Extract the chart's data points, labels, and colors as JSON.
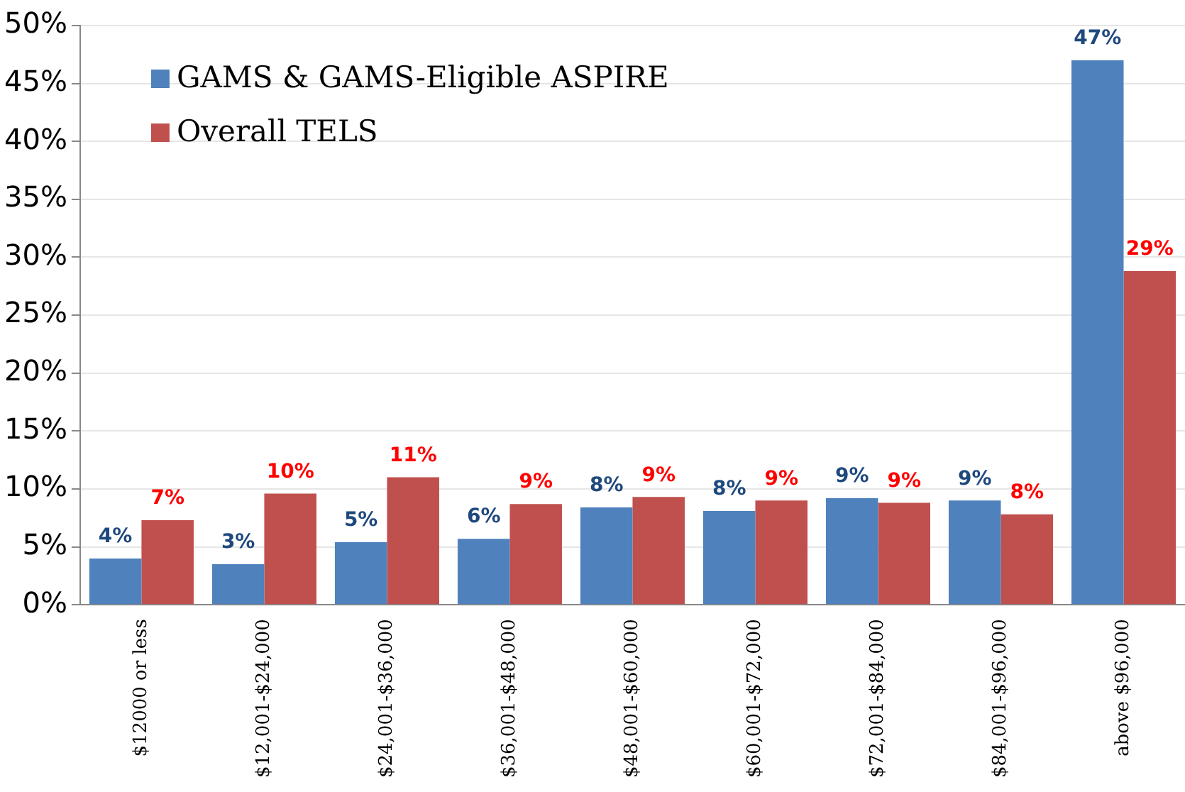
{
  "chart_data": {
    "type": "bar",
    "categories": [
      "$12000 or less",
      "$12,001-$24,000",
      "$24,001-$36,000",
      "$36,001-$48,000",
      "$48,001-$60,000",
      "$60,001-$72,000",
      "$72,001-$84,000",
      "$84,001-$96,000",
      "above $96,000"
    ],
    "series": [
      {
        "name": "GAMS & GAMS-Eligible ASPIRE",
        "color": "#4f81bd",
        "values": [
          4.0,
          3.5,
          5.4,
          5.7,
          8.4,
          8.1,
          9.2,
          9.0,
          47.0
        ],
        "value_labels": [
          "4%",
          "3%",
          "5%",
          "6%",
          "8%",
          "8%",
          "9%",
          "9%",
          "47%"
        ]
      },
      {
        "name": "Overall TELS",
        "color": "#c0504d",
        "values": [
          7.3,
          9.6,
          11.0,
          8.7,
          9.3,
          9.0,
          8.8,
          7.8,
          28.8
        ],
        "value_labels": [
          "7%",
          "10%",
          "11%",
          "9%",
          "9%",
          "9%",
          "9%",
          "8%",
          "29%"
        ]
      }
    ],
    "ylim": [
      0,
      50
    ],
    "yticks": [
      {
        "value": 0,
        "label": "0%"
      },
      {
        "value": 5,
        "label": "5%"
      },
      {
        "value": 10,
        "label": "10%"
      },
      {
        "value": 15,
        "label": "15%"
      },
      {
        "value": 20,
        "label": "20%"
      },
      {
        "value": 25,
        "label": "25%"
      },
      {
        "value": 30,
        "label": "30%"
      },
      {
        "value": 35,
        "label": "35%"
      },
      {
        "value": 40,
        "label": "40%"
      },
      {
        "value": 45,
        "label": "45%"
      },
      {
        "value": 50,
        "label": "50%"
      }
    ],
    "grid": "y",
    "legend": "top left"
  }
}
